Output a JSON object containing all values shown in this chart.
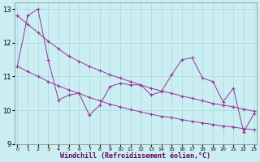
{
  "xlabel": "Windchill (Refroidissement éolien,°C)",
  "bg_color": "#caeef2",
  "grid_color": "#aad8dc",
  "line_color": "#993399",
  "x_data": [
    0,
    1,
    2,
    3,
    4,
    5,
    6,
    7,
    8,
    9,
    10,
    11,
    12,
    13,
    14,
    15,
    16,
    17,
    18,
    19,
    20,
    21,
    22,
    23
  ],
  "y_main": [
    11.3,
    12.8,
    13.0,
    11.5,
    10.3,
    10.45,
    10.5,
    9.85,
    10.15,
    10.7,
    10.8,
    10.75,
    10.75,
    10.45,
    10.55,
    11.05,
    11.5,
    11.55,
    10.95,
    10.85,
    10.25,
    10.65,
    9.35,
    9.9
  ],
  "y_upper": [
    12.8,
    12.55,
    12.3,
    12.05,
    11.82,
    11.6,
    11.45,
    11.3,
    11.18,
    11.05,
    10.95,
    10.85,
    10.75,
    10.65,
    10.57,
    10.5,
    10.42,
    10.35,
    10.28,
    10.2,
    10.15,
    10.1,
    10.03,
    9.97
  ],
  "y_lower": [
    11.3,
    11.15,
    11.0,
    10.85,
    10.72,
    10.6,
    10.5,
    10.38,
    10.28,
    10.18,
    10.1,
    10.02,
    9.95,
    9.88,
    9.82,
    9.78,
    9.72,
    9.67,
    9.62,
    9.58,
    9.53,
    9.5,
    9.45,
    9.42
  ],
  "ylim": [
    9.0,
    13.2
  ],
  "xlim": [
    -0.3,
    23.3
  ],
  "yticks": [
    9,
    10,
    11,
    12,
    13
  ],
  "xticks": [
    0,
    1,
    2,
    3,
    4,
    5,
    6,
    7,
    8,
    9,
    10,
    11,
    12,
    13,
    14,
    15,
    16,
    17,
    18,
    19,
    20,
    21,
    22,
    23
  ],
  "xlabel_color": "#660066",
  "tick_color": "#000000",
  "xlabel_fontsize": 6,
  "ytick_fontsize": 6,
  "xtick_fontsize": 4.5
}
